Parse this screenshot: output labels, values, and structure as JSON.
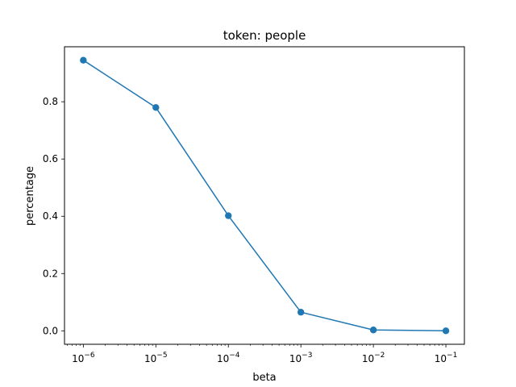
{
  "chart_data": {
    "type": "line",
    "title": "token: people",
    "xlabel": "beta",
    "ylabel": "percentage",
    "xscale": "log",
    "xlim": [
      5.5e-07,
      0.18
    ],
    "ylim": [
      -0.047,
      0.992
    ],
    "x_ticks": [
      {
        "value": 1e-06,
        "base": "10",
        "exp": "−6"
      },
      {
        "value": 1e-05,
        "base": "10",
        "exp": "−5"
      },
      {
        "value": 0.0001,
        "base": "10",
        "exp": "−4"
      },
      {
        "value": 0.001,
        "base": "10",
        "exp": "−3"
      },
      {
        "value": 0.01,
        "base": "10",
        "exp": "−2"
      },
      {
        "value": 0.1,
        "base": "10",
        "exp": "−1"
      }
    ],
    "y_ticks": [
      {
        "value": 0.0,
        "label": "0.0"
      },
      {
        "value": 0.2,
        "label": "0.2"
      },
      {
        "value": 0.4,
        "label": "0.4"
      },
      {
        "value": 0.6,
        "label": "0.6"
      },
      {
        "value": 0.8,
        "label": "0.8"
      }
    ],
    "minor_x_ticks": true,
    "grid": false,
    "series": [
      {
        "color": "#1f77b4",
        "marker": "circle",
        "x": [
          1e-06,
          1e-05,
          0.0001,
          0.001,
          0.01,
          0.1
        ],
        "y": [
          0.945,
          0.78,
          0.402,
          0.065,
          0.003,
          0.0
        ]
      }
    ]
  }
}
